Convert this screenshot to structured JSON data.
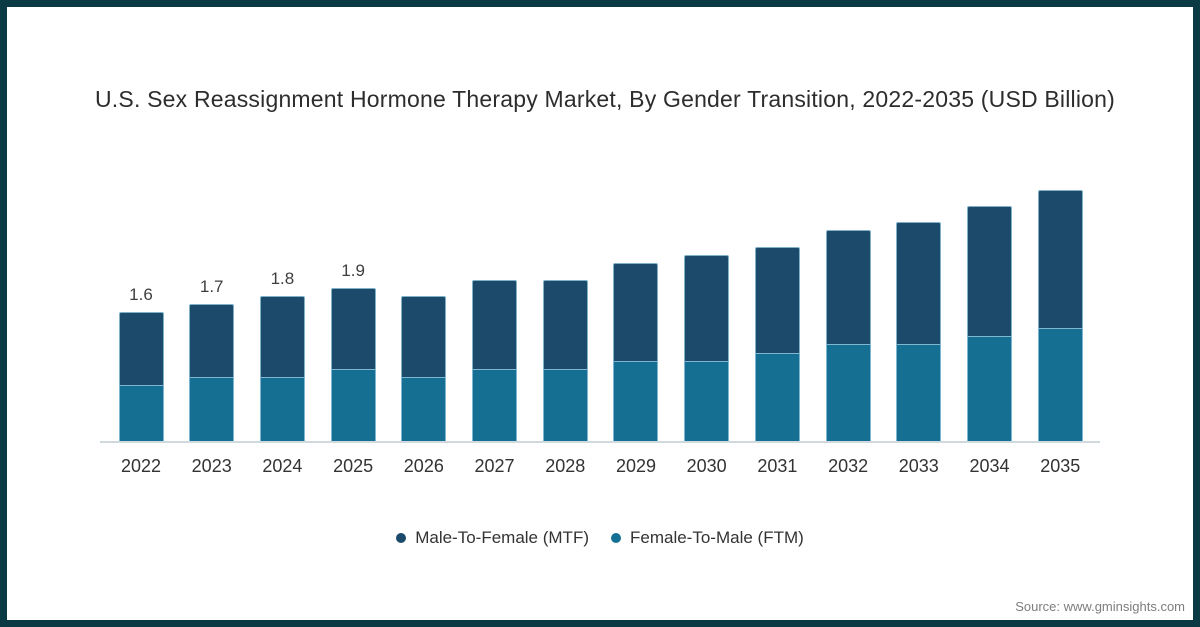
{
  "title": "U.S. Sex Reassignment Hormone Therapy Market, By Gender Transition, 2022-2035 (USD Billion)",
  "source": "Source: www.gminsights.com",
  "colors": {
    "frame_border": "#0a3a44",
    "background": "#ffffff",
    "mtf": "#1b4a6b",
    "ftm": "#146f93",
    "bar_stroke": "#93c3da",
    "axis_line": "#d0dade",
    "title_text": "#2d2d2d",
    "axis_text": "#333333",
    "value_text": "#3f3f3f",
    "source_text": "#7d7d7d"
  },
  "legend": {
    "items": [
      {
        "label": "Male-To-Female (MTF)",
        "color": "#1b4a6b",
        "series_key": "mtf"
      },
      {
        "label": "Female-To-Male (FTM)",
        "color": "#146f93",
        "series_key": "ftm"
      }
    ]
  },
  "chart_data": {
    "type": "bar",
    "stacked": true,
    "title": "U.S. Sex Reassignment Hormone Therapy Market, By Gender Transition, 2022-2035 (USD Billion)",
    "unit": "USD Billion",
    "categories": [
      "2022",
      "2023",
      "2024",
      "2025",
      "2026",
      "2027",
      "2028",
      "2029",
      "2030",
      "2031",
      "2032",
      "2033",
      "2034",
      "2035"
    ],
    "series": [
      {
        "name": "Male-To-Female (MTF)",
        "color": "#1b4a6b",
        "values": [
          0.9,
          0.9,
          1.0,
          1.0,
          1.0,
          1.1,
          1.1,
          1.2,
          1.3,
          1.3,
          1.4,
          1.5,
          1.6,
          1.7
        ]
      },
      {
        "name": "Female-To-Male (FTM)",
        "color": "#146f93",
        "values": [
          0.7,
          0.8,
          0.8,
          0.9,
          0.8,
          0.9,
          0.9,
          1.0,
          1.0,
          1.1,
          1.2,
          1.2,
          1.3,
          1.4
        ]
      }
    ],
    "totals": [
      1.6,
      1.7,
      1.8,
      1.9,
      1.8,
      2.0,
      2.0,
      2.2,
      2.3,
      2.4,
      2.6,
      2.7,
      2.9,
      3.1
    ],
    "value_labels": [
      "1.6",
      "1.7",
      "1.8",
      "1.9",
      "",
      "",
      "",
      "",
      "",
      "",
      "",
      "",
      "",
      ""
    ],
    "xlabel": "",
    "ylabel": "",
    "y_axis_visible": false,
    "grid": false,
    "legend_position": "bottom"
  }
}
